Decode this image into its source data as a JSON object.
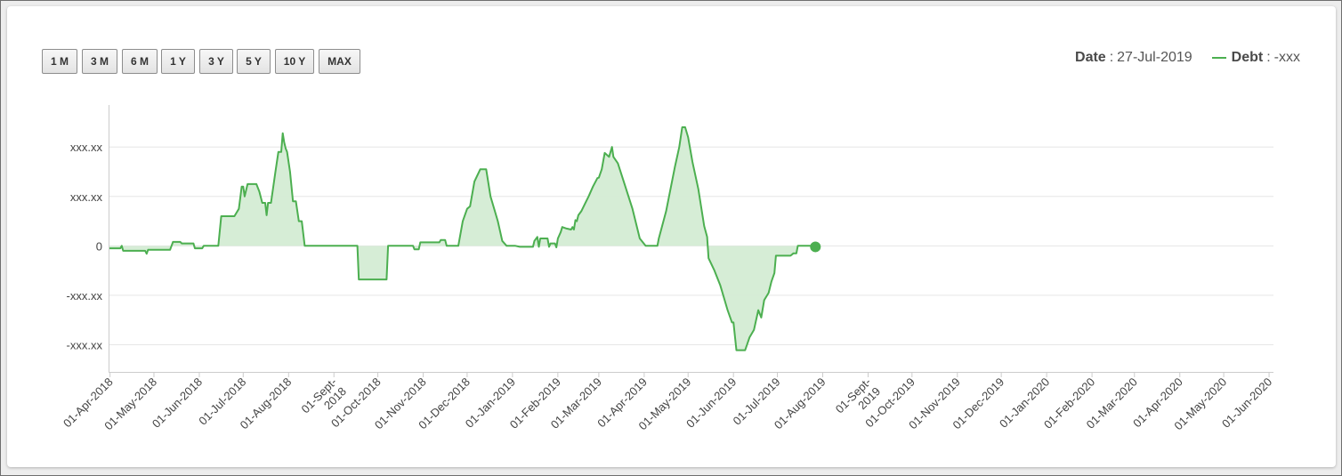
{
  "range_buttons": [
    "1 M",
    "3 M",
    "6 M",
    "1 Y",
    "3 Y",
    "5 Y",
    "10 Y",
    "MAX"
  ],
  "tooltip": {
    "date_label": "Date",
    "date_value": "27-Jul-2019",
    "series_label": "Debt",
    "series_value": "-xxx"
  },
  "colors": {
    "series": "#4caf50",
    "fill": "#d4ecd4"
  },
  "chart_data": {
    "type": "area",
    "series": [
      {
        "name": "Debt"
      }
    ],
    "yticks": [
      {
        "label": "xxx.xx",
        "value": 2
      },
      {
        "label": "xxx.xx",
        "value": 1
      },
      {
        "label": "0",
        "value": 0
      },
      {
        "label": "-xxx.xx",
        "value": -1
      },
      {
        "label": "-xxx.xx",
        "value": -2
      }
    ],
    "ylim": [
      -2.55,
      2.85
    ],
    "xlim": [
      "2018-03-31",
      "2020-06-04"
    ],
    "xticks": [
      {
        "date": "2018-04-01",
        "label": [
          "01-Apr-2018"
        ]
      },
      {
        "date": "2018-05-01",
        "label": [
          "01-May-2018"
        ]
      },
      {
        "date": "2018-06-01",
        "label": [
          "01-Jun-2018"
        ]
      },
      {
        "date": "2018-07-01",
        "label": [
          "01-Jul-2018"
        ]
      },
      {
        "date": "2018-08-01",
        "label": [
          "01-Aug-2018"
        ]
      },
      {
        "date": "2018-09-01",
        "label": [
          "01-Sept-",
          "2018"
        ]
      },
      {
        "date": "2018-10-01",
        "label": [
          "01-Oct-2018"
        ]
      },
      {
        "date": "2018-11-01",
        "label": [
          "01-Nov-2018"
        ]
      },
      {
        "date": "2018-12-01",
        "label": [
          "01-Dec-2018"
        ]
      },
      {
        "date": "2019-01-01",
        "label": [
          "01-Jan-2019"
        ]
      },
      {
        "date": "2019-02-01",
        "label": [
          "01-Feb-2019"
        ]
      },
      {
        "date": "2019-03-01",
        "label": [
          "01-Mar-2019"
        ]
      },
      {
        "date": "2019-04-01",
        "label": [
          "01-Apr-2019"
        ]
      },
      {
        "date": "2019-05-01",
        "label": [
          "01-May-2019"
        ]
      },
      {
        "date": "2019-06-01",
        "label": [
          "01-Jun-2019"
        ]
      },
      {
        "date": "2019-07-01",
        "label": [
          "01-Jul-2019"
        ]
      },
      {
        "date": "2019-08-01",
        "label": [
          "01-Aug-2019"
        ]
      },
      {
        "date": "2019-09-01",
        "label": [
          "01-Sept-",
          "2019"
        ]
      },
      {
        "date": "2019-10-01",
        "label": [
          "01-Oct-2019"
        ]
      },
      {
        "date": "2019-11-01",
        "label": [
          "01-Nov-2019"
        ]
      },
      {
        "date": "2019-12-01",
        "label": [
          "01-Dec-2019"
        ]
      },
      {
        "date": "2020-01-01",
        "label": [
          "01-Jan-2020"
        ]
      },
      {
        "date": "2020-02-01",
        "label": [
          "01-Feb-2020"
        ]
      },
      {
        "date": "2020-03-01",
        "label": [
          "01-Mar-2020"
        ]
      },
      {
        "date": "2020-04-01",
        "label": [
          "01-Apr-2020"
        ]
      },
      {
        "date": "2020-05-01",
        "label": [
          "01-May-2020"
        ]
      },
      {
        "date": "2020-06-01",
        "label": [
          "01-Jun-2020"
        ]
      }
    ],
    "highlight": {
      "date": "2019-07-27",
      "value": -0.02
    },
    "points": [
      [
        "2018-03-31",
        -0.05
      ],
      [
        "2018-04-08",
        -0.05
      ],
      [
        "2018-04-09",
        0.0
      ],
      [
        "2018-04-10",
        -0.1
      ],
      [
        "2018-04-25",
        -0.1
      ],
      [
        "2018-04-26",
        -0.16
      ],
      [
        "2018-04-27",
        -0.08
      ],
      [
        "2018-05-12",
        -0.08
      ],
      [
        "2018-05-14",
        0.08
      ],
      [
        "2018-05-19",
        0.08
      ],
      [
        "2018-05-20",
        0.05
      ],
      [
        "2018-05-28",
        0.05
      ],
      [
        "2018-05-29",
        -0.05
      ],
      [
        "2018-06-03",
        -0.05
      ],
      [
        "2018-06-04",
        0.0
      ],
      [
        "2018-06-14",
        0.0
      ],
      [
        "2018-06-16",
        0.6
      ],
      [
        "2018-06-25",
        0.6
      ],
      [
        "2018-06-28",
        0.75
      ],
      [
        "2018-06-30",
        1.2
      ],
      [
        "2018-07-01",
        1.2
      ],
      [
        "2018-07-02",
        1.0
      ],
      [
        "2018-07-04",
        1.25
      ],
      [
        "2018-07-10",
        1.25
      ],
      [
        "2018-07-12",
        1.1
      ],
      [
        "2018-07-14",
        0.87
      ],
      [
        "2018-07-16",
        0.87
      ],
      [
        "2018-07-17",
        0.62
      ],
      [
        "2018-07-18",
        0.87
      ],
      [
        "2018-07-20",
        0.87
      ],
      [
        "2018-07-23",
        1.5
      ],
      [
        "2018-07-25",
        1.9
      ],
      [
        "2018-07-27",
        1.9
      ],
      [
        "2018-07-28",
        2.28
      ],
      [
        "2018-07-29",
        2.1
      ],
      [
        "2018-07-30",
        1.97
      ],
      [
        "2018-07-31",
        1.9
      ],
      [
        "2018-08-02",
        1.5
      ],
      [
        "2018-08-04",
        0.9
      ],
      [
        "2018-08-06",
        0.9
      ],
      [
        "2018-08-08",
        0.5
      ],
      [
        "2018-08-10",
        0.5
      ],
      [
        "2018-08-12",
        0.0
      ],
      [
        "2018-09-17",
        0.0
      ],
      [
        "2018-09-18",
        -0.68
      ],
      [
        "2018-10-07",
        -0.68
      ],
      [
        "2018-10-08",
        0.0
      ],
      [
        "2018-10-25",
        0.0
      ],
      [
        "2018-10-26",
        -0.07
      ],
      [
        "2018-10-29",
        -0.07
      ],
      [
        "2018-10-30",
        0.07
      ],
      [
        "2018-11-12",
        0.07
      ],
      [
        "2018-11-13",
        0.12
      ],
      [
        "2018-11-16",
        0.12
      ],
      [
        "2018-11-17",
        0.0
      ],
      [
        "2018-11-25",
        0.0
      ],
      [
        "2018-11-28",
        0.5
      ],
      [
        "2018-12-01",
        0.75
      ],
      [
        "2018-12-03",
        0.8
      ],
      [
        "2018-12-06",
        1.3
      ],
      [
        "2018-12-10",
        1.55
      ],
      [
        "2018-12-14",
        1.55
      ],
      [
        "2018-12-17",
        1.0
      ],
      [
        "2018-12-20",
        0.7
      ],
      [
        "2018-12-22",
        0.5
      ],
      [
        "2018-12-25",
        0.1
      ],
      [
        "2018-12-28",
        0.0
      ],
      [
        "2019-01-03",
        0.0
      ],
      [
        "2019-01-06",
        -0.02
      ],
      [
        "2019-01-15",
        -0.02
      ],
      [
        "2019-01-16",
        0.1
      ],
      [
        "2019-01-18",
        0.18
      ],
      [
        "2019-01-19",
        -0.02
      ],
      [
        "2019-01-20",
        0.15
      ],
      [
        "2019-01-25",
        0.15
      ],
      [
        "2019-01-26",
        -0.02
      ],
      [
        "2019-01-27",
        0.05
      ],
      [
        "2019-01-30",
        0.05
      ],
      [
        "2019-01-31",
        -0.03
      ],
      [
        "2019-02-01",
        0.15
      ],
      [
        "2019-02-03",
        0.28
      ],
      [
        "2019-02-04",
        0.38
      ],
      [
        "2019-02-07",
        0.35
      ],
      [
        "2019-02-10",
        0.33
      ],
      [
        "2019-02-11",
        0.38
      ],
      [
        "2019-02-12",
        0.33
      ],
      [
        "2019-02-13",
        0.52
      ],
      [
        "2019-02-14",
        0.5
      ],
      [
        "2019-02-15",
        0.62
      ],
      [
        "2019-02-17",
        0.7
      ],
      [
        "2019-02-20",
        0.88
      ],
      [
        "2019-02-22",
        1.0
      ],
      [
        "2019-02-25",
        1.2
      ],
      [
        "2019-02-28",
        1.37
      ],
      [
        "2019-03-01",
        1.38
      ],
      [
        "2019-03-03",
        1.55
      ],
      [
        "2019-03-05",
        1.88
      ],
      [
        "2019-03-08",
        1.8
      ],
      [
        "2019-03-10",
        2.0
      ],
      [
        "2019-03-11",
        1.8
      ],
      [
        "2019-03-14",
        1.67
      ],
      [
        "2019-03-18",
        1.3
      ],
      [
        "2019-03-24",
        0.75
      ],
      [
        "2019-03-29",
        0.15
      ],
      [
        "2019-04-02",
        0.0
      ],
      [
        "2019-04-10",
        0.0
      ],
      [
        "2019-04-11",
        0.15
      ],
      [
        "2019-04-16",
        0.7
      ],
      [
        "2019-04-22",
        1.6
      ],
      [
        "2019-04-25",
        2.0
      ],
      [
        "2019-04-27",
        2.4
      ],
      [
        "2019-04-29",
        2.4
      ],
      [
        "2019-05-01",
        2.2
      ],
      [
        "2019-05-04",
        1.7
      ],
      [
        "2019-05-08",
        1.15
      ],
      [
        "2019-05-12",
        0.4
      ],
      [
        "2019-05-14",
        0.18
      ],
      [
        "2019-05-15",
        -0.25
      ],
      [
        "2019-05-19",
        -0.5
      ],
      [
        "2019-05-23",
        -0.8
      ],
      [
        "2019-05-26",
        -1.1
      ],
      [
        "2019-05-28",
        -1.3
      ],
      [
        "2019-05-31",
        -1.55
      ],
      [
        "2019-06-01",
        -1.55
      ],
      [
        "2019-06-03",
        -2.11
      ],
      [
        "2019-06-09",
        -2.11
      ],
      [
        "2019-06-12",
        -1.85
      ],
      [
        "2019-06-15",
        -1.7
      ],
      [
        "2019-06-18",
        -1.3
      ],
      [
        "2019-06-20",
        -1.45
      ],
      [
        "2019-06-22",
        -1.1
      ],
      [
        "2019-06-25",
        -0.95
      ],
      [
        "2019-06-27",
        -0.72
      ],
      [
        "2019-06-29",
        -0.55
      ],
      [
        "2019-06-30",
        -0.2
      ],
      [
        "2019-07-10",
        -0.2
      ],
      [
        "2019-07-12",
        -0.15
      ],
      [
        "2019-07-14",
        -0.15
      ],
      [
        "2019-07-15",
        0.0
      ],
      [
        "2019-07-24",
        0.0
      ]
    ]
  }
}
